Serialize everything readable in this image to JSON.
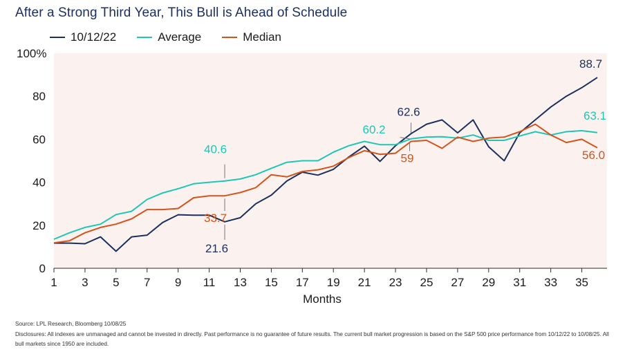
{
  "title": "After a Strong Third Year, This Bull is Ahead of Schedule",
  "footer": {
    "source": "Source: LPL Research, Bloomberg 10/08/25",
    "disclosures": "Disclosures: All indexes are unmanaged and cannot be invested in directly. Past performance is no guarantee of future results. The current bull market progression is based on the S&P 500 price performance from 10/12/22 to 10/08/25. All bull markets since 1950 are included."
  },
  "chart_data": {
    "type": "line",
    "xlabel": "Months",
    "ylabel": "",
    "xlim": [
      1,
      36
    ],
    "ylim": [
      0,
      100
    ],
    "x_ticks": [
      "1",
      "3",
      "5",
      "7",
      "9",
      "11",
      "13",
      "15",
      "17",
      "19",
      "21",
      "23",
      "25",
      "27",
      "29",
      "31",
      "33",
      "35"
    ],
    "y_ticks": [
      "0",
      "20",
      "40",
      "60",
      "80",
      "100%"
    ],
    "background": "#fbf2f0",
    "legend_position": "top-left",
    "x": [
      1,
      2,
      3,
      4,
      5,
      6,
      7,
      8,
      9,
      10,
      11,
      12,
      13,
      14,
      15,
      16,
      17,
      18,
      19,
      20,
      21,
      22,
      23,
      24,
      25,
      26,
      27,
      28,
      29,
      30,
      31,
      32,
      33,
      34,
      35,
      36
    ],
    "series": [
      {
        "name": "10/12/22",
        "color": "#1b2f5e",
        "values": [
          11.7,
          11.7,
          11.4,
          14.6,
          7.9,
          14.6,
          15.4,
          21.3,
          24.9,
          24.7,
          24.7,
          21.6,
          23.5,
          30.0,
          34.0,
          40.6,
          44.7,
          43.3,
          46.0,
          51.8,
          56.8,
          49.7,
          57.0,
          62.6,
          67.0,
          69.0,
          63.0,
          69.0,
          56.5,
          50.0,
          63.0,
          69.0,
          75.0,
          80.0,
          84.0,
          88.7
        ]
      },
      {
        "name": "Average",
        "color": "#1cc7b3",
        "values": [
          13.5,
          16.5,
          19.0,
          20.5,
          25.0,
          26.5,
          32.0,
          35.0,
          37.0,
          39.3,
          40.0,
          40.6,
          41.5,
          43.5,
          46.5,
          49.3,
          50.0,
          50.0,
          54.0,
          57.0,
          59.0,
          57.5,
          57.5,
          60.2,
          61.0,
          61.2,
          60.5,
          62.0,
          59.5,
          59.5,
          61.5,
          63.5,
          62.0,
          63.5,
          64.0,
          63.1
        ]
      },
      {
        "name": "Median",
        "color": "#d4531a",
        "values": [
          11.8,
          12.8,
          16.5,
          19.0,
          20.5,
          23.0,
          27.3,
          27.3,
          27.8,
          32.8,
          33.7,
          33.7,
          35.2,
          37.5,
          43.5,
          42.5,
          45.0,
          45.8,
          47.5,
          51.5,
          54.7,
          53.0,
          53.5,
          59.0,
          59.5,
          55.8,
          61.0,
          59.0,
          60.5,
          61.0,
          63.5,
          67.0,
          62.0,
          58.5,
          60.0,
          56.0
        ]
      }
    ],
    "annotations": [
      {
        "text": "88.7",
        "series": "10/12/22",
        "x": 36,
        "y": 88.7
      },
      {
        "text": "63.1",
        "series": "Average",
        "x": 36,
        "y": 63.1
      },
      {
        "text": "56.0",
        "series": "Median",
        "x": 36,
        "y": 56.0
      },
      {
        "text": "62.6",
        "series": "10/12/22",
        "x": 24,
        "y": 62.6
      },
      {
        "text": "60.2",
        "series": "Average",
        "x": 24,
        "y": 60.2
      },
      {
        "text": "59",
        "series": "Median",
        "x": 24,
        "y": 59.0
      },
      {
        "text": "40.6",
        "series": "Average",
        "x": 12,
        "y": 40.6
      },
      {
        "text": "33.7",
        "series": "Median",
        "x": 12,
        "y": 33.7
      },
      {
        "text": "21.6",
        "series": "10/12/22",
        "x": 12,
        "y": 21.6
      }
    ]
  }
}
